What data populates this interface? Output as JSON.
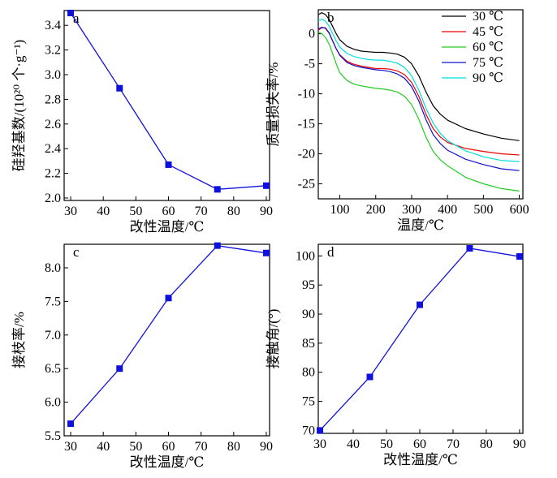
{
  "chart_data": [
    {
      "panel": "a",
      "type": "line",
      "xlabel": "改性温度/℃",
      "ylabel": "硅羟基数/(10²⁰ 个·g⁻¹)",
      "xlim": [
        28,
        91
      ],
      "ylim": [
        1.98,
        3.52
      ],
      "xticks": [
        30,
        40,
        50,
        60,
        70,
        80,
        90
      ],
      "yticks": [
        2.0,
        2.2,
        2.4,
        2.6,
        2.8,
        3.0,
        3.2,
        3.4
      ],
      "ytick_decimals": 1,
      "x": [
        30,
        45,
        60,
        75,
        90
      ],
      "y": [
        3.5,
        2.89,
        2.27,
        2.07,
        2.1
      ],
      "color": "#1010dd"
    },
    {
      "panel": "b",
      "type": "line",
      "xlabel": "温度/℃",
      "ylabel": "质量损失率/%",
      "xlim": [
        40,
        610
      ],
      "ylim": [
        -27.5,
        4
      ],
      "xticks": [
        100,
        200,
        300,
        400,
        500,
        600
      ],
      "yticks": [
        0,
        -5,
        -10,
        -15,
        -20,
        -25
      ],
      "ytick_decimals": 0,
      "x": [
        40,
        50,
        60,
        70,
        80,
        90,
        100,
        120,
        140,
        160,
        180,
        200,
        220,
        240,
        260,
        280,
        300,
        320,
        340,
        360,
        380,
        400,
        450,
        500,
        550,
        600
      ],
      "series": [
        {
          "name": "30 ℃",
          "color": "#000000",
          "y": [
            3.2,
            3.5,
            3.2,
            2.4,
            1.2,
            0.0,
            -1.0,
            -2.1,
            -2.6,
            -2.9,
            -3.0,
            -3.1,
            -3.1,
            -3.2,
            -3.4,
            -3.9,
            -5.0,
            -7.0,
            -9.7,
            -12.0,
            -13.4,
            -14.4,
            -15.8,
            -16.7,
            -17.4,
            -17.8
          ]
        },
        {
          "name": "45 ℃",
          "color": "#ee0000",
          "y": [
            0.6,
            1.0,
            1.0,
            0.2,
            -1.2,
            -2.5,
            -3.5,
            -4.6,
            -5.1,
            -5.4,
            -5.6,
            -5.8,
            -5.8,
            -5.9,
            -6.2,
            -6.8,
            -8.1,
            -10.4,
            -13.4,
            -15.8,
            -17.2,
            -18.1,
            -19.1,
            -19.6,
            -20.0,
            -20.2
          ]
        },
        {
          "name": "60 ℃",
          "color": "#22cc22",
          "y": [
            0.3,
            0.0,
            -0.6,
            -1.7,
            -3.3,
            -5.0,
            -6.5,
            -7.8,
            -8.4,
            -8.7,
            -8.9,
            -9.1,
            -9.2,
            -9.4,
            -9.7,
            -10.4,
            -11.8,
            -14.2,
            -17.2,
            -19.6,
            -21.0,
            -22.0,
            -23.9,
            -25.0,
            -25.8,
            -26.2
          ]
        },
        {
          "name": "75 ℃",
          "color": "#1010cc",
          "y": [
            0.8,
            1.1,
            0.9,
            0.1,
            -1.2,
            -2.5,
            -3.6,
            -4.8,
            -5.3,
            -5.6,
            -5.8,
            -6.0,
            -6.1,
            -6.3,
            -6.7,
            -7.4,
            -8.8,
            -11.2,
            -14.3,
            -16.8,
            -18.3,
            -19.4,
            -20.9,
            -21.8,
            -22.5,
            -22.8
          ]
        },
        {
          "name": "90 ℃",
          "color": "#00dddd",
          "y": [
            2.2,
            2.4,
            2.1,
            1.3,
            0.0,
            -1.2,
            -2.2,
            -3.3,
            -3.8,
            -4.1,
            -4.3,
            -4.4,
            -4.4,
            -4.6,
            -4.9,
            -5.6,
            -7.0,
            -9.4,
            -12.4,
            -14.9,
            -16.6,
            -17.8,
            -19.5,
            -20.5,
            -21.1,
            -21.3
          ]
        }
      ]
    },
    {
      "panel": "c",
      "type": "line",
      "xlabel": "改性温度/℃",
      "ylabel": "接枝率/%",
      "xlim": [
        28,
        91
      ],
      "ylim": [
        5.5,
        8.35
      ],
      "xticks": [
        30,
        40,
        50,
        60,
        70,
        80,
        90
      ],
      "yticks": [
        5.5,
        6.0,
        6.5,
        7.0,
        7.5,
        8.0
      ],
      "ytick_decimals": 1,
      "x": [
        30,
        45,
        60,
        75,
        90
      ],
      "y": [
        5.68,
        6.5,
        7.55,
        8.33,
        8.22
      ],
      "color": "#1010dd"
    },
    {
      "panel": "d",
      "type": "line",
      "xlabel": "改性温度/℃",
      "ylabel": "接触角/(°)",
      "xlim": [
        29.5,
        91
      ],
      "ylim": [
        69.5,
        102
      ],
      "xticks": [
        30,
        40,
        50,
        60,
        70,
        80,
        90
      ],
      "yticks": [
        70,
        75,
        80,
        85,
        90,
        95,
        100
      ],
      "ytick_decimals": 0,
      "x": [
        30,
        45,
        60,
        75,
        90
      ],
      "y": [
        70,
        79.2,
        91.6,
        101.3,
        99.9
      ],
      "color": "#1010dd"
    }
  ]
}
